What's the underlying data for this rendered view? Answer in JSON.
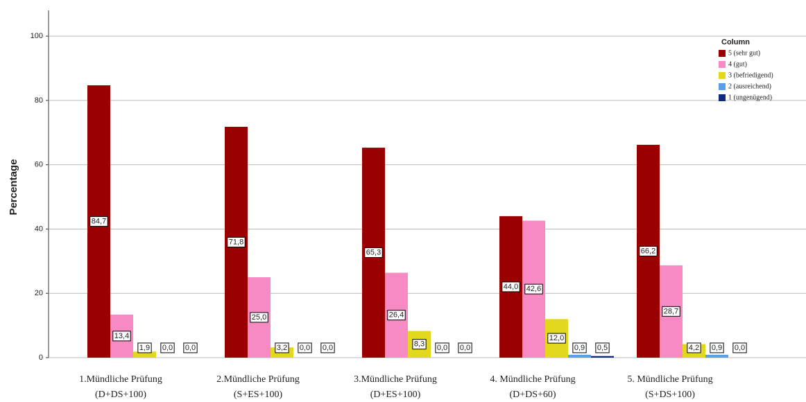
{
  "chart_data": {
    "type": "bar",
    "y_label": "Percentage",
    "legend_title": "Column",
    "legend": "top-right",
    "grid": true,
    "categories": [
      [
        "1.Mündliche Prüfung",
        "(D+DS+100)"
      ],
      [
        "2.Mündliche Prüfung",
        "(S+ES+100)"
      ],
      [
        "3.Mündliche Prüfung",
        "(D+ES+100)"
      ],
      [
        "4. Mündliche Prüfung",
        "(D+DS+60)"
      ],
      [
        "5. Mündliche Prüfung",
        "(S+DS+100)"
      ]
    ],
    "series": [
      {
        "name": "5 (sehr gut)",
        "color": "#9b0000",
        "values": [
          84.7,
          71.8,
          65.3,
          44.0,
          66.2
        ],
        "value_labels": [
          "84,7",
          "71,8",
          "65,3",
          "44,0",
          "66,2"
        ]
      },
      {
        "name": "4 (gut)",
        "color": "#f78ac2",
        "values": [
          13.4,
          25.0,
          26.4,
          42.6,
          28.7
        ],
        "value_labels": [
          "13,4",
          "25,0",
          "26,4",
          "42,6",
          "28,7"
        ]
      },
      {
        "name": "3 (befriedigend)",
        "color": "#e2d91e",
        "values": [
          1.9,
          3.2,
          8.3,
          12.0,
          4.2
        ],
        "value_labels": [
          "1,9",
          "3,2",
          "8,3",
          "12,0",
          "4,2"
        ]
      },
      {
        "name": "2 (ausreichend)",
        "color": "#5b9ee8",
        "values": [
          0.0,
          0.0,
          0.0,
          0.9,
          0.9
        ],
        "value_labels": [
          "0,0",
          "0,0",
          "0,0",
          "0,9",
          "0,9"
        ]
      },
      {
        "name": "1 (ungenügend)",
        "color": "#102a7c",
        "values": [
          0.0,
          0.0,
          0.0,
          0.5,
          0.0
        ],
        "value_labels": [
          "0,0",
          "0,0",
          "0,0",
          "0,5",
          "0,0"
        ]
      }
    ],
    "ylim": [
      0,
      108
    ],
    "yticks": [
      0,
      20,
      40,
      60,
      80,
      100
    ]
  }
}
